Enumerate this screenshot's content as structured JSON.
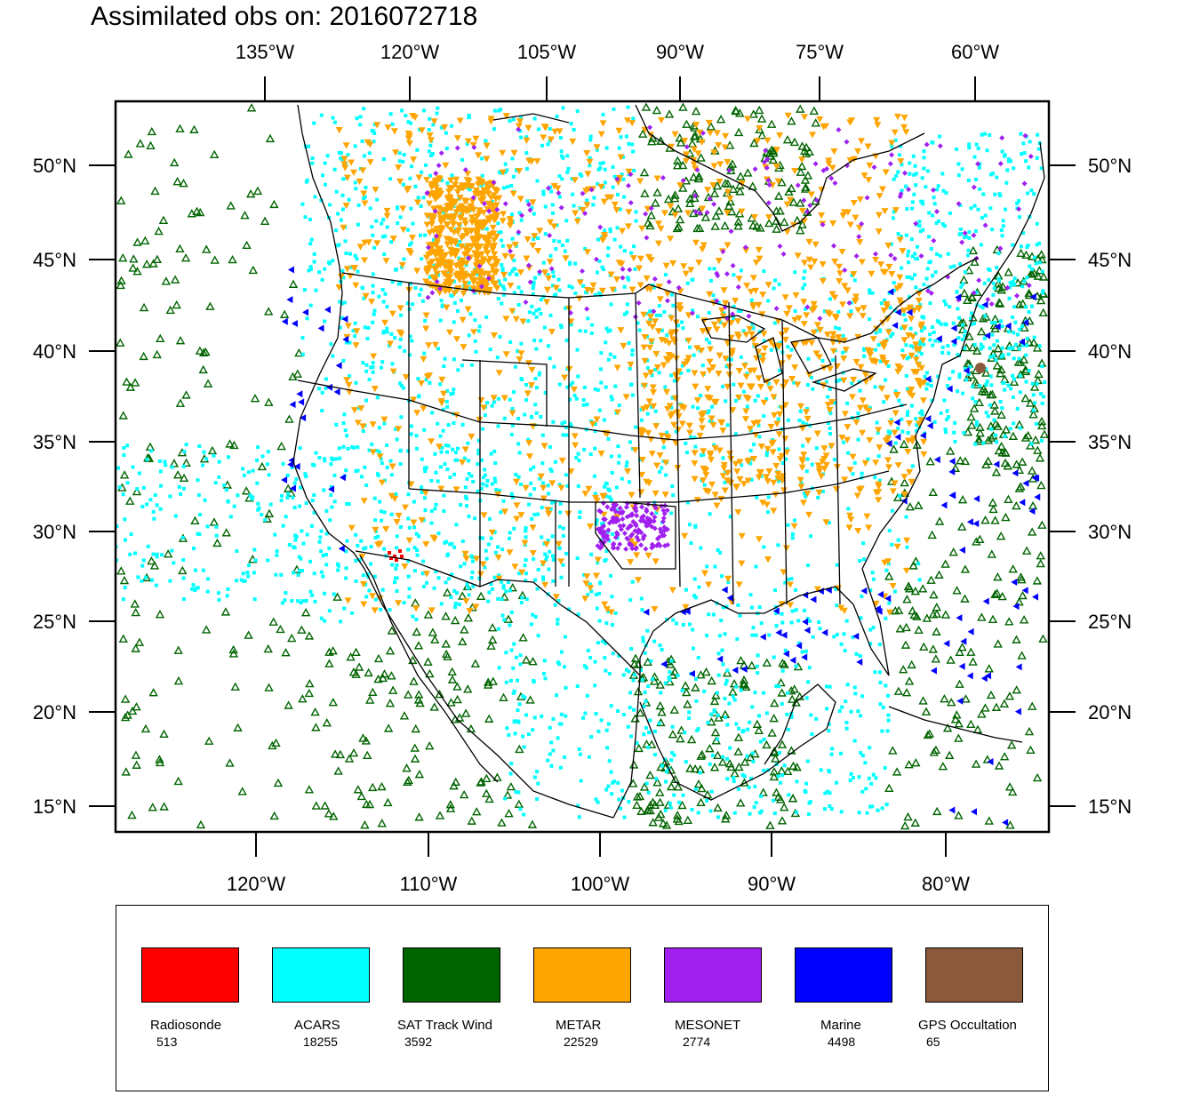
{
  "title": "Assimilated obs on: 2016072718",
  "top_axis_labels": [
    "135°W",
    "120°W",
    "105°W",
    "90°W",
    "75°W",
    "60°W"
  ],
  "bottom_axis_labels": [
    "120°W",
    "110°W",
    "100°W",
    "90°W",
    "80°W"
  ],
  "lat_labels": [
    "50°N",
    "45°N",
    "40°N",
    "35°N",
    "30°N",
    "25°N",
    "20°N",
    "15°N"
  ],
  "colors": {
    "radiosonde": "#ff0000",
    "acars": "#00ffff",
    "sat_track_wind": "#006400",
    "metar": "#ffa500",
    "mesonet": "#a020f0",
    "marine": "#0000ff",
    "gps_occultation": "#8b5a3c"
  },
  "legend": [
    {
      "name": "Radiosonde",
      "count": "513",
      "color": "#ff0000"
    },
    {
      "name": "ACARS",
      "count": "18255",
      "color": "#00ffff"
    },
    {
      "name": "SAT Track Wind",
      "count": "3592",
      "color": "#006400"
    },
    {
      "name": "METAR",
      "count": "22529",
      "color": "#ffa500"
    },
    {
      "name": "MESONET",
      "count": "2774",
      "color": "#a020f0"
    },
    {
      "name": "Marine",
      "count": "4498",
      "color": "#0000ff"
    },
    {
      "name": "GPS Occultation",
      "count": "65",
      "color": "#8b5a3c"
    }
  ]
}
